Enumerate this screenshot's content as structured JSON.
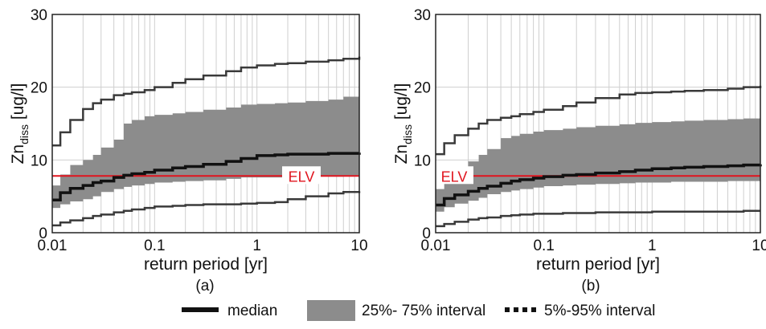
{
  "colors": {
    "band": "#8c8c8c",
    "median": "#111111",
    "outer": "#3a3a3a",
    "elv": "#e0141e",
    "grid": "#cfcfcf"
  },
  "chart_data": [
    {
      "type": "area",
      "panel_label": "(a)",
      "xlabel": "return period [yr]",
      "ylabel_main": "Zn",
      "ylabel_sub": "diss",
      "ylabel_unit": " [ug/l]",
      "xscale": "log",
      "xlim": [
        0.01,
        10
      ],
      "ylim": [
        0,
        30
      ],
      "xticks": [
        0.01,
        0.1,
        1,
        10
      ],
      "xtick_labels": [
        "0.01",
        "0.1",
        "1",
        "10"
      ],
      "yticks": [
        0,
        10,
        20,
        30
      ],
      "ytick_labels": [
        "0",
        "10",
        "20",
        "30"
      ],
      "grid": true,
      "annotations": [
        {
          "text": "ELV",
          "y": 7.8,
          "line_color": "#e0141e"
        }
      ],
      "x": [
        0.01,
        0.012,
        0.015,
        0.02,
        0.025,
        0.03,
        0.04,
        0.05,
        0.06,
        0.08,
        0.1,
        0.15,
        0.2,
        0.3,
        0.5,
        0.7,
        1,
        1.5,
        2,
        3,
        5,
        7,
        10
      ],
      "series": [
        {
          "name": "median",
          "values": [
            4.5,
            5.5,
            6.1,
            6.5,
            6.9,
            7.1,
            7.6,
            7.9,
            8.1,
            8.3,
            8.6,
            8.9,
            9.1,
            9.4,
            9.8,
            10.2,
            10.6,
            10.7,
            10.8,
            10.8,
            10.9,
            10.9,
            11.0
          ]
        },
        {
          "name": "25%- 75% interval lower",
          "values": [
            2.8,
            3.4,
            3.9,
            4.3,
            4.6,
            5.0,
            5.6,
            6.0,
            6.3,
            6.5,
            6.7,
            6.9,
            7.0,
            7.1,
            7.2,
            7.4,
            7.6,
            7.6,
            7.6,
            7.7,
            7.7,
            7.7,
            7.8
          ]
        },
        {
          "name": "25%- 75% interval upper",
          "values": [
            6.5,
            8.0,
            9.3,
            10.0,
            10.7,
            11.7,
            12.8,
            15.0,
            15.5,
            16.0,
            16.2,
            16.4,
            16.6,
            16.9,
            17.2,
            17.6,
            17.7,
            17.8,
            17.9,
            18.1,
            18.3,
            18.7,
            19.0
          ]
        },
        {
          "name": "5%-95% interval lower",
          "values": [
            1.0,
            1.4,
            1.7,
            2.0,
            2.3,
            2.5,
            2.8,
            3.0,
            3.2,
            3.4,
            3.6,
            3.7,
            3.8,
            3.9,
            3.9,
            4.0,
            4.1,
            4.2,
            4.6,
            5.0,
            5.4,
            5.6,
            5.7
          ]
        },
        {
          "name": "5%-95% interval upper",
          "values": [
            12.0,
            13.8,
            15.5,
            17.0,
            17.8,
            18.3,
            18.9,
            19.1,
            19.3,
            19.6,
            20.0,
            20.6,
            21.1,
            21.6,
            22.2,
            22.7,
            23.0,
            23.2,
            23.3,
            23.5,
            23.7,
            23.9,
            24.2
          ]
        }
      ]
    },
    {
      "type": "area",
      "panel_label": "(b)",
      "xlabel": "return period [yr]",
      "ylabel_main": "Zn",
      "ylabel_sub": "diss",
      "ylabel_unit": " [ug/l]",
      "xscale": "log",
      "xlim": [
        0.01,
        10
      ],
      "ylim": [
        0,
        30
      ],
      "xticks": [
        0.01,
        0.1,
        1,
        10
      ],
      "xtick_labels": [
        "0.01",
        "0.1",
        "1",
        "10"
      ],
      "yticks": [
        0,
        10,
        20,
        30
      ],
      "ytick_labels": [
        "0",
        "10",
        "20",
        "30"
      ],
      "grid": true,
      "annotations": [
        {
          "text": "ELV",
          "y": 7.8,
          "line_color": "#e0141e"
        }
      ],
      "x": [
        0.01,
        0.012,
        0.015,
        0.02,
        0.025,
        0.03,
        0.04,
        0.05,
        0.06,
        0.08,
        0.1,
        0.15,
        0.2,
        0.3,
        0.5,
        0.7,
        1,
        1.5,
        2,
        3,
        5,
        7,
        10
      ],
      "series": [
        {
          "name": "median",
          "values": [
            3.8,
            4.7,
            5.2,
            5.7,
            6.1,
            6.4,
            6.8,
            7.1,
            7.3,
            7.5,
            7.7,
            7.9,
            8.0,
            8.2,
            8.4,
            8.6,
            8.8,
            8.9,
            9.0,
            9.1,
            9.2,
            9.3,
            9.4
          ]
        },
        {
          "name": "25%- 75% interval lower",
          "values": [
            2.3,
            2.9,
            3.5,
            4.0,
            4.4,
            4.8,
            5.3,
            5.6,
            5.8,
            6.0,
            6.2,
            6.4,
            6.5,
            6.6,
            6.7,
            6.8,
            6.9,
            6.9,
            7.0,
            7.0,
            7.0,
            7.1,
            7.1
          ]
        },
        {
          "name": "25%- 75% interval upper",
          "values": [
            6.0,
            7.5,
            8.9,
            9.8,
            10.7,
            11.5,
            13.0,
            13.3,
            13.6,
            13.9,
            14.1,
            14.3,
            14.5,
            14.7,
            14.9,
            15.1,
            15.2,
            15.3,
            15.4,
            15.5,
            15.6,
            15.7,
            15.8
          ]
        },
        {
          "name": "5%-95% interval lower",
          "values": [
            0.9,
            1.2,
            1.5,
            1.8,
            2.0,
            2.1,
            2.3,
            2.4,
            2.5,
            2.6,
            2.6,
            2.7,
            2.7,
            2.8,
            2.8,
            2.8,
            2.9,
            2.9,
            2.9,
            2.9,
            2.9,
            3.0,
            3.0
          ]
        },
        {
          "name": "5%-95% interval upper",
          "values": [
            10.8,
            12.3,
            13.4,
            14.3,
            15.0,
            15.5,
            15.8,
            16.0,
            16.3,
            16.6,
            16.9,
            17.4,
            17.9,
            18.5,
            19.0,
            19.2,
            19.3,
            19.4,
            19.5,
            19.6,
            19.8,
            20.0,
            20.2
          ]
        }
      ]
    }
  ],
  "legend": {
    "median_label": "median",
    "band_label": "25%- 75% interval",
    "outer_label": "5%-95% interval"
  }
}
